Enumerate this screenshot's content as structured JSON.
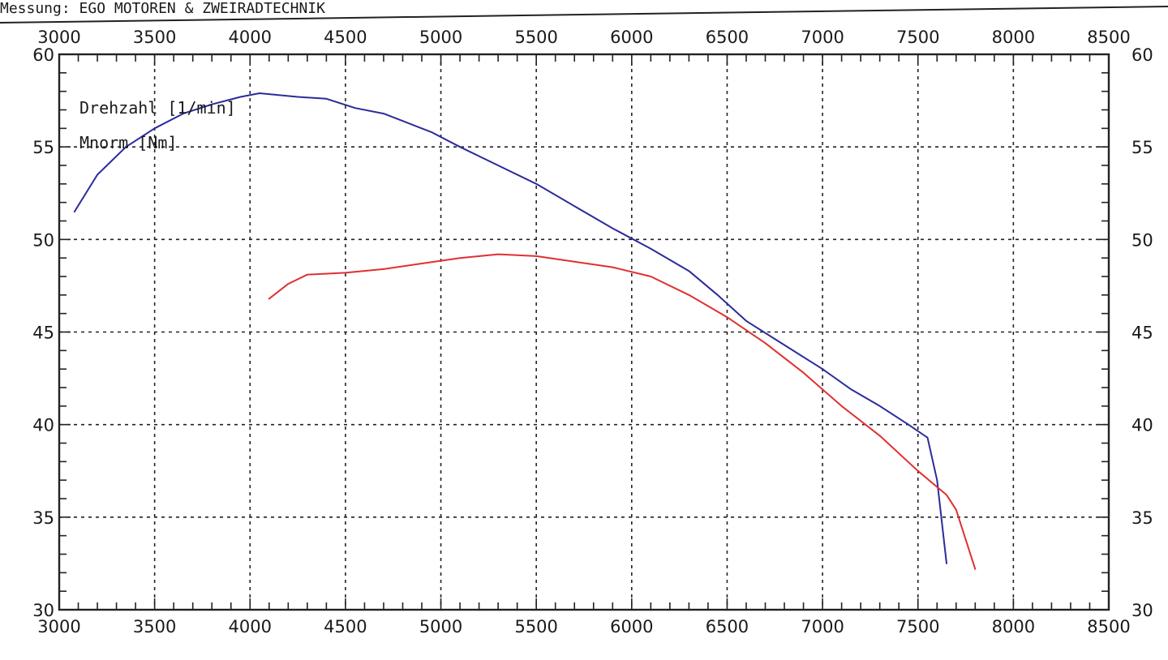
{
  "header": {
    "caption": "Messung: EGO MOTOREN & ZWEIRADTECHNIK"
  },
  "colors": {
    "series_1": "#2b2b9b",
    "series_2": "#e03030",
    "ink": "#222222"
  },
  "chart_data": {
    "type": "line",
    "title": "",
    "grid": true,
    "legend_placement": "top-left",
    "legend": [
      "Drehzahl [1/min]",
      "Mnorm [Nm]"
    ],
    "x_axis": {
      "range": [
        3000,
        8500
      ],
      "ticks": [
        3000,
        3500,
        4000,
        4500,
        5000,
        5500,
        6000,
        6500,
        7000,
        7500,
        8000,
        8500
      ],
      "tick_labels": [
        "3000",
        "3500",
        "4000",
        "4500",
        "5000",
        "5500",
        "6000",
        "6500",
        "7000",
        "7500",
        "8000",
        "8500"
      ]
    },
    "y_left_axis": {
      "range": [
        30,
        60
      ],
      "ticks": [
        30,
        35,
        40,
        45,
        50,
        55,
        60
      ],
      "tick_labels": [
        "30",
        "35",
        "40",
        "45",
        "50",
        "55",
        "60"
      ]
    },
    "y_right_axis": {
      "range": [
        30,
        60
      ],
      "ticks": [
        30,
        35,
        40,
        45,
        50,
        55,
        60
      ],
      "tick_labels": [
        "30",
        "35",
        "40",
        "45",
        "50",
        "55",
        "60"
      ]
    },
    "series": [
      {
        "color": "#2b2b9b",
        "x": [
          3080,
          3200,
          3350,
          3500,
          3650,
          3800,
          3950,
          4050,
          4150,
          4250,
          4400,
          4550,
          4700,
          4800,
          4950,
          5100,
          5300,
          5500,
          5700,
          5900,
          6100,
          6300,
          6450,
          6600,
          6800,
          7000,
          7150,
          7300,
          7450,
          7550,
          7600,
          7650
        ],
        "y": [
          51.5,
          53.5,
          55.0,
          56.0,
          56.8,
          57.3,
          57.7,
          57.9,
          57.8,
          57.7,
          57.6,
          57.1,
          56.8,
          56.4,
          55.8,
          55.0,
          54.0,
          53.0,
          51.8,
          50.6,
          49.5,
          48.3,
          47.0,
          45.6,
          44.3,
          43.0,
          41.9,
          41.0,
          40.0,
          39.3,
          37.0,
          32.5
        ]
      },
      {
        "color": "#e03030",
        "x": [
          4100,
          4200,
          4300,
          4500,
          4700,
          4900,
          5100,
          5300,
          5500,
          5700,
          5900,
          6100,
          6300,
          6500,
          6700,
          6900,
          7100,
          7300,
          7500,
          7650,
          7700,
          7800
        ],
        "y": [
          46.8,
          47.6,
          48.1,
          48.2,
          48.4,
          48.7,
          49.0,
          49.2,
          49.1,
          48.8,
          48.5,
          48.0,
          47.0,
          45.8,
          44.4,
          42.8,
          41.0,
          39.4,
          37.5,
          36.2,
          35.4,
          32.2
        ]
      }
    ]
  }
}
